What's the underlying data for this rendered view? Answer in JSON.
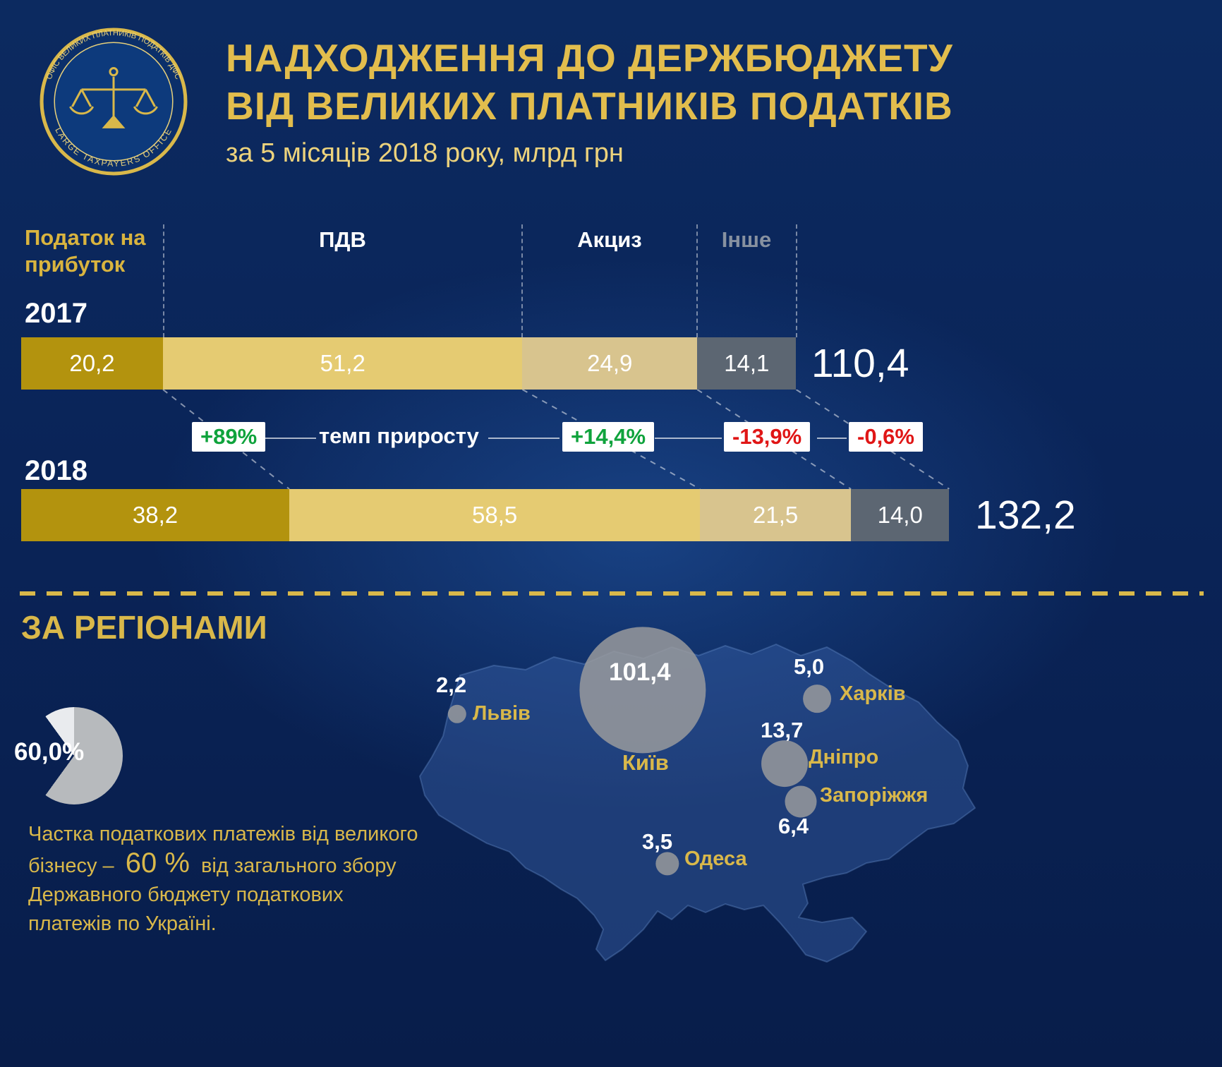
{
  "header": {
    "title_line1": "НАДХОДЖЕННЯ ДО ДЕРЖБЮДЖЕТУ",
    "title_line2": "ВІД ВЕЛИКИХ ПЛАТНИКІВ ПОДАТКІВ",
    "subtitle": "за 5 місяців 2018 року, млрд грн",
    "logo": {
      "ring_top": "ОФІС ВЕЛИКИХ ПЛАТНИКІВ ПОДАТКІВ ДФС",
      "ring_bottom": "LARGE TAXPAYERS OFFICE"
    }
  },
  "chart_data": [
    {
      "type": "bar",
      "stacked": true,
      "orientation": "horizontal",
      "unit": "млрд грн",
      "categories": [
        "Податок на прибуток",
        "ПДВ",
        "Акциз",
        "Інше"
      ],
      "series": [
        {
          "name": "2017",
          "values": [
            20.2,
            51.2,
            24.9,
            14.1
          ],
          "labels": [
            "20,2",
            "51,2",
            "24,9",
            "14,1"
          ],
          "total": 110.4,
          "total_label": "110,4"
        },
        {
          "name": "2018",
          "values": [
            38.2,
            58.5,
            21.5,
            14.0
          ],
          "labels": [
            "38,2",
            "58,5",
            "21,5",
            "14,0"
          ],
          "total": 132.2,
          "total_label": "132,2"
        }
      ],
      "growth_rates": {
        "label": "темп приросту",
        "items": [
          {
            "text": "+89%",
            "trend": "up"
          },
          {
            "text": "+14,4%",
            "trend": "up"
          },
          {
            "text": "-13,9%",
            "trend": "down"
          },
          {
            "text": "-0,6%",
            "trend": "down"
          }
        ]
      },
      "colors": {
        "profit_tax": "#b3930e",
        "vat": "#e5cb72",
        "excise": "#d8c48e",
        "other": "#5c6672",
        "positive": "#0fa33c",
        "negative": "#e01616"
      }
    },
    {
      "type": "pie",
      "label": "60,0%",
      "value": 60.0,
      "slice_color": "#b7babd"
    },
    {
      "type": "bubble-map",
      "region": "Україна",
      "bubble_color": "#9e9e9e",
      "cities": [
        {
          "name": "Львів",
          "value": 2.2,
          "label": "2,2"
        },
        {
          "name": "Київ",
          "value": 101.4,
          "label": "101,4"
        },
        {
          "name": "Харків",
          "value": 5.0,
          "label": "5,0"
        },
        {
          "name": "Дніпро",
          "value": 13.7,
          "label": "13,7"
        },
        {
          "name": "Запоріжжя",
          "value": 6.4,
          "label": "6,4"
        },
        {
          "name": "Одеса",
          "value": 3.5,
          "label": "3,5"
        }
      ]
    }
  ],
  "regions": {
    "section_title": "ЗА РЕГІОНАМИ",
    "note_prefix": "Частка податкових платежів від великого бізнесу – ",
    "note_value": "60 %",
    "note_suffix": " від загального збору Державного бюджету податкових платежів по Україні."
  },
  "palette": {
    "background": "#0a2458",
    "gold": "#d9b84a",
    "title_gold": "#e2bd4d"
  }
}
